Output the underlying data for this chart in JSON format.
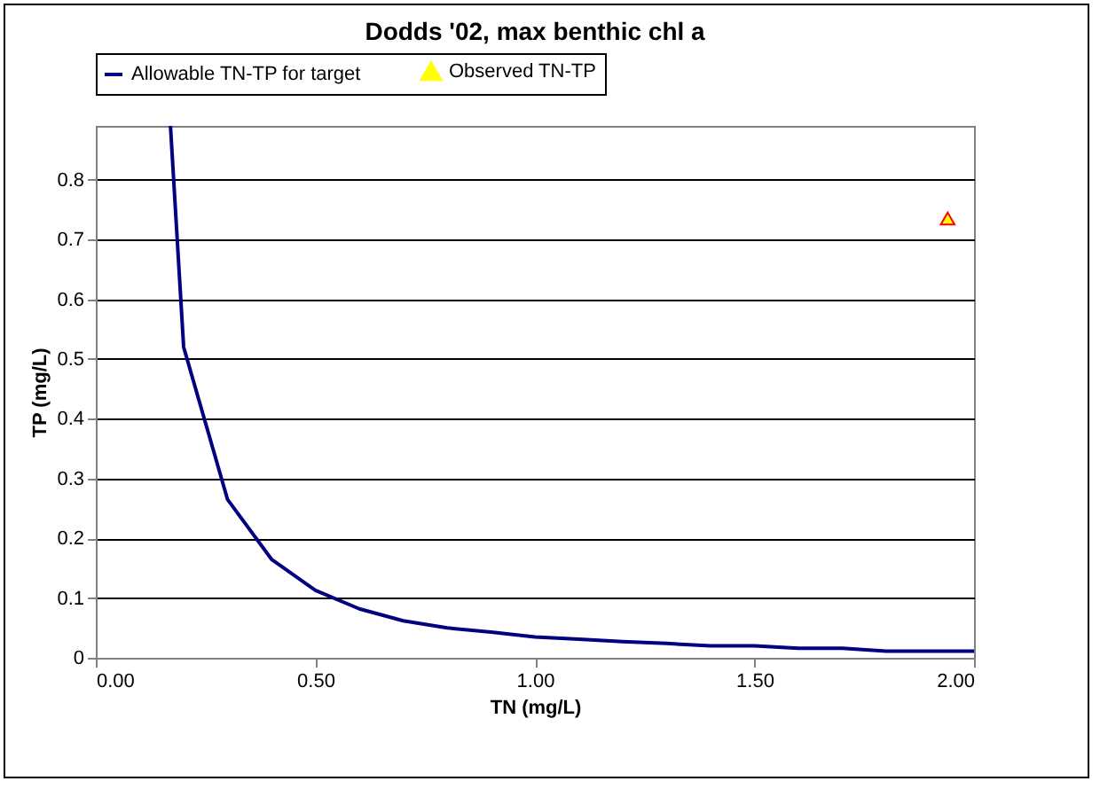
{
  "chart_data": {
    "type": "line",
    "title": "Dodds '02, max benthic chl a",
    "xlabel": "TN (mg/L)",
    "ylabel": "TP (mg/L)",
    "xlim": [
      0,
      2
    ],
    "ylim": [
      0,
      0.89
    ],
    "xticks": [
      {
        "value": 0,
        "label": "0.00"
      },
      {
        "value": 0.5,
        "label": "0.50"
      },
      {
        "value": 1,
        "label": "1.00"
      },
      {
        "value": 1.5,
        "label": "1.50"
      },
      {
        "value": 2,
        "label": "2.00"
      }
    ],
    "yticks": [
      0,
      0.1,
      0.2,
      0.3,
      0.4,
      0.5,
      0.6,
      0.7,
      0.8
    ],
    "grid": "y",
    "legend": "top",
    "line_style": "solid",
    "series": [
      {
        "name": "Allowable TN-TP for target",
        "color": "#000080",
        "x": [
          0.17,
          0.2,
          0.3,
          0.4,
          0.5,
          0.6,
          0.7,
          0.8,
          0.9,
          1.0,
          1.1,
          1.2,
          1.3,
          1.4,
          1.5,
          1.6,
          1.7,
          1.8,
          1.9,
          2.0
        ],
        "values": [
          0.89,
          0.52,
          0.265,
          0.165,
          0.113,
          0.082,
          0.062,
          0.05,
          0.043,
          0.035,
          0.031,
          0.027,
          0.024,
          0.02,
          0.02,
          0.016,
          0.016,
          0.011,
          0.011,
          0.011
        ]
      },
      {
        "name": "Observed TN-TP",
        "type": "scatter",
        "marker": "triangle",
        "color": "#ffff00",
        "x": [
          1.94
        ],
        "values": [
          0.735
        ]
      }
    ]
  }
}
